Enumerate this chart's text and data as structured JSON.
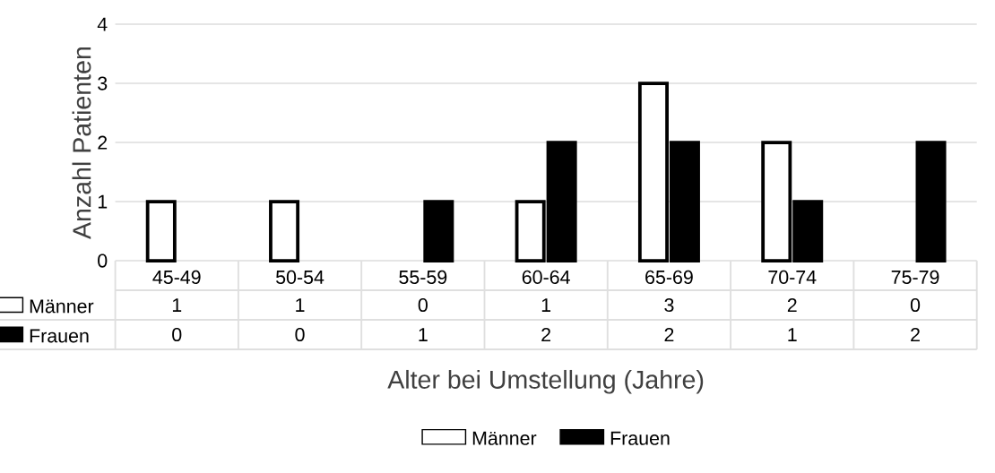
{
  "chart_data": {
    "type": "bar",
    "ylabel": "Anzahl Patienten",
    "xlabel": "Alter bei Umstellung (Jahre)",
    "categories": [
      "45-49",
      "50-54",
      "55-59",
      "60-64",
      "65-69",
      "70-74",
      "75-79"
    ],
    "series": [
      {
        "name": "Männer",
        "color": "#ffffff",
        "values": [
          1,
          1,
          0,
          1,
          3,
          2,
          0
        ]
      },
      {
        "name": "Frauen",
        "color": "#000000",
        "values": [
          0,
          0,
          1,
          2,
          2,
          1,
          2
        ]
      }
    ],
    "ylim": [
      0,
      4
    ],
    "yticks": [
      0,
      1,
      2,
      3,
      4
    ],
    "grid": "y",
    "legend": "bottom",
    "data_labels": true
  }
}
